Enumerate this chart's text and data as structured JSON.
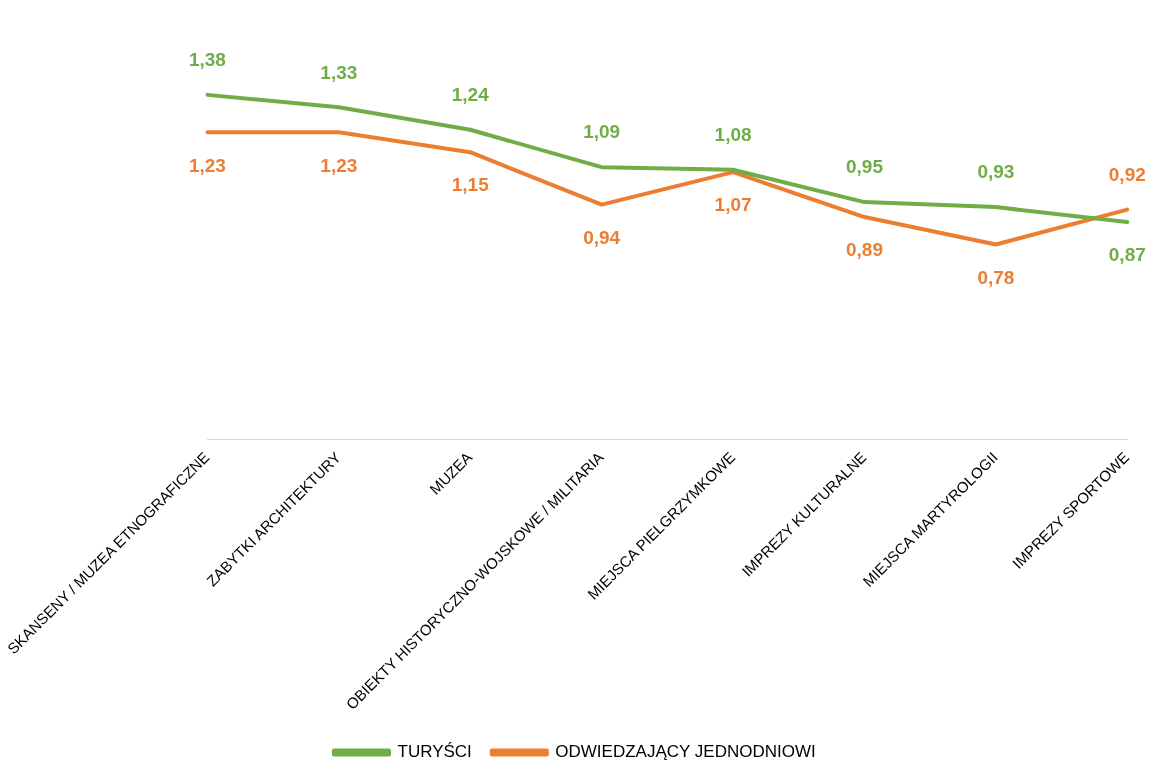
{
  "chart_data": {
    "type": "line",
    "categories": [
      "SKANSENY / MUZEA ETNOGRAFICZNE",
      "ZABYTKI ARCHITEKTURY",
      "MUZEA",
      "OBIEKTY HISTORYCZNO-WOJSKOWE / MILITARIA",
      "MIEJSCA PIELGRZYMKOWE",
      "IMPREZY KULTURALNE",
      "MIEJSCA MARTYROLOGII",
      "IMPREZY SPORTOWE"
    ],
    "series": [
      {
        "name": "TURYŚCI",
        "color": "#70ad47",
        "values": [
          1.38,
          1.33,
          1.24,
          1.09,
          1.08,
          0.95,
          0.93,
          0.87
        ],
        "value_labels": [
          "1,38",
          "1,33",
          "1,24",
          "1,09",
          "1,08",
          "0,95",
          "0,93",
          "0,87"
        ]
      },
      {
        "name": "ODWIEDZAJĄCY JEDNODNIOWI",
        "color": "#ed7d31",
        "values": [
          1.23,
          1.23,
          1.15,
          0.94,
          1.07,
          0.89,
          0.78,
          0.92
        ],
        "value_labels": [
          "1,23",
          "1,23",
          "1,15",
          "0,94",
          "1,07",
          "0,89",
          "0,78",
          "0,92"
        ]
      }
    ],
    "tick_labels": "x",
    "grid": false,
    "legend": "bottom",
    "marker": "none",
    "line_style": "solid"
  }
}
